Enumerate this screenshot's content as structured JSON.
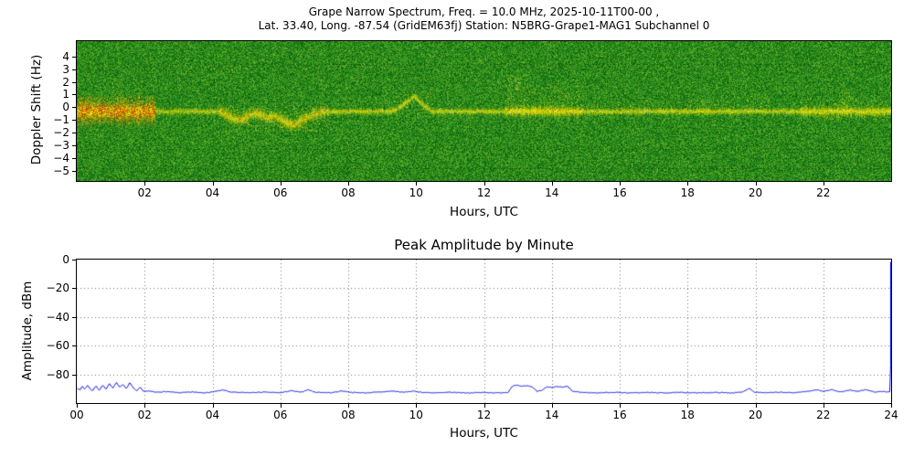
{
  "chart_data": [
    {
      "type": "heatmap",
      "title_line1": "Grape Narrow Spectrum, Freq. = 10.0 MHz, 2025-10-11T00-00 ,",
      "title_line2": "Lat.  33.40, Long. -87.54 (GridEM63fj) Station: N5BRG-Grape1-MAG1 Subchannel 0",
      "xlabel": "Hours, UTC",
      "ylabel": "Doppler Shift (Hz)",
      "xlim": [
        0,
        24
      ],
      "ylim": [
        -5.8,
        5.2
      ],
      "x_ticks": [
        {
          "v": 2,
          "label": "02"
        },
        {
          "v": 4,
          "label": "04"
        },
        {
          "v": 6,
          "label": "06"
        },
        {
          "v": 8,
          "label": "08"
        },
        {
          "v": 10,
          "label": "10"
        },
        {
          "v": 12,
          "label": "12"
        },
        {
          "v": 14,
          "label": "14"
        },
        {
          "v": 16,
          "label": "16"
        },
        {
          "v": 18,
          "label": "18"
        },
        {
          "v": 20,
          "label": "20"
        },
        {
          "v": 22,
          "label": "22"
        }
      ],
      "y_ticks": [
        {
          "v": 4,
          "label": "4"
        },
        {
          "v": 3,
          "label": "3"
        },
        {
          "v": 2,
          "label": "2"
        },
        {
          "v": 1,
          "label": "1"
        },
        {
          "v": 0,
          "label": "0"
        },
        {
          "v": -1,
          "label": "−1"
        },
        {
          "v": -2,
          "label": "−2"
        },
        {
          "v": -3,
          "label": "−3"
        },
        {
          "v": -4,
          "label": "−4"
        },
        {
          "v": -5,
          "label": "−5"
        }
      ],
      "artifact_lines": [
        3.4,
        -3.3,
        -4.8
      ],
      "noise_seed": 42,
      "colors": {
        "trace": "255,232,0",
        "hot": "255,60,0",
        "bright": "255,255,230"
      },
      "baseline_hz": -0.3,
      "trace": [
        [
          0,
          -0.3
        ],
        [
          4.2,
          -0.3
        ],
        [
          4.4,
          -0.55
        ],
        [
          4.6,
          -0.9
        ],
        [
          4.8,
          -1.0
        ],
        [
          5.0,
          -0.7
        ],
        [
          5.2,
          -0.45
        ],
        [
          5.4,
          -0.55
        ],
        [
          5.6,
          -0.8
        ],
        [
          5.8,
          -0.65
        ],
        [
          6.0,
          -0.9
        ],
        [
          6.2,
          -1.25
        ],
        [
          6.4,
          -1.35
        ],
        [
          6.6,
          -1.0
        ],
        [
          6.8,
          -0.75
        ],
        [
          7.0,
          -0.5
        ],
        [
          7.2,
          -0.35
        ],
        [
          7.4,
          -0.3
        ],
        [
          9.2,
          -0.3
        ],
        [
          9.4,
          -0.15
        ],
        [
          9.6,
          0.2
        ],
        [
          9.8,
          0.6
        ],
        [
          9.95,
          0.9
        ],
        [
          10.1,
          0.5
        ],
        [
          10.25,
          0.1
        ],
        [
          10.4,
          -0.2
        ],
        [
          10.5,
          -0.3
        ],
        [
          24,
          -0.3
        ]
      ],
      "segments": [
        {
          "t0": 0.0,
          "t1": 2.3,
          "spread": 0.45,
          "bright": 1.0,
          "hot": 0.5
        },
        {
          "t0": 2.3,
          "t1": 4.2,
          "spread": 0.12,
          "bright": 0.8,
          "hot": 0.0
        },
        {
          "t0": 4.2,
          "t1": 7.4,
          "spread": 0.22,
          "bright": 0.85,
          "hot": 0.08
        },
        {
          "t0": 7.4,
          "t1": 12.6,
          "spread": 0.12,
          "bright": 0.85,
          "hot": 0.0
        },
        {
          "t0": 12.6,
          "t1": 14.9,
          "spread": 0.2,
          "bright": 1.0,
          "hot": 0.05
        },
        {
          "t0": 14.9,
          "t1": 21.3,
          "spread": 0.12,
          "bright": 0.85,
          "hot": 0.0
        },
        {
          "t0": 21.3,
          "t1": 24.0,
          "spread": 0.18,
          "bright": 0.95,
          "hot": 0.0
        }
      ],
      "speckles": [
        {
          "t0": 0.05,
          "t1": 2.3,
          "hz0": -1.3,
          "hz1": 0.9,
          "density": 2.5,
          "color": "mix"
        },
        {
          "t0": 0.9,
          "t1": 1.35,
          "hz0": 0.2,
          "hz1": 2.4,
          "density": 0.8,
          "color": "dim"
        },
        {
          "t0": 4.3,
          "t1": 7.3,
          "hz0": -1.9,
          "hz1": 0.1,
          "density": 1.2,
          "color": "dim"
        },
        {
          "t0": 9.3,
          "t1": 10.5,
          "hz0": -0.2,
          "hz1": 1.1,
          "density": 0.9,
          "color": "dim"
        },
        {
          "t0": 12.62,
          "t1": 13.05,
          "hz0": -0.4,
          "hz1": 2.6,
          "density": 3.0,
          "color": "bright"
        },
        {
          "t0": 13.05,
          "t1": 14.9,
          "hz0": -0.4,
          "hz1": 1.7,
          "density": 1.4,
          "color": "dim"
        },
        {
          "t0": 15.0,
          "t1": 19.5,
          "hz0": -0.5,
          "hz1": 0.5,
          "density": 0.5,
          "color": "dim"
        },
        {
          "t0": 19.7,
          "t1": 20.4,
          "hz0": -0.4,
          "hz1": 1.0,
          "density": 0.8,
          "color": "dim"
        },
        {
          "t0": 21.3,
          "t1": 23.9,
          "hz0": -1.0,
          "hz1": 0.7,
          "density": 1.0,
          "color": "dim"
        },
        {
          "t0": 22.55,
          "t1": 22.8,
          "hz0": -0.3,
          "hz1": 1.4,
          "density": 1.5,
          "color": "dim"
        }
      ],
      "streaks": [
        [
          4.8,
          -1.0,
          0.5,
          -0.6
        ],
        [
          5.5,
          -0.7,
          0.6,
          -0.9
        ],
        [
          6.0,
          -0.9,
          0.7,
          -0.9
        ],
        [
          6.45,
          -1.3,
          0.5,
          -0.6
        ],
        [
          0.3,
          -0.5,
          0.4,
          -0.6
        ],
        [
          1.5,
          -0.4,
          0.5,
          -0.7
        ]
      ]
    },
    {
      "type": "line",
      "title": "Peak Amplitude by Minute",
      "xlabel": "Hours, UTC",
      "ylabel": "Amplitude, dBm",
      "xlim": [
        0,
        24
      ],
      "ylim": [
        -100,
        0
      ],
      "color": "#0000dd",
      "jitter": 0.5,
      "x_ticks": [
        {
          "v": 0,
          "label": "00"
        },
        {
          "v": 2,
          "label": "02"
        },
        {
          "v": 4,
          "label": "04"
        },
        {
          "v": 6,
          "label": "06"
        },
        {
          "v": 8,
          "label": "08"
        },
        {
          "v": 10,
          "label": "10"
        },
        {
          "v": 12,
          "label": "12"
        },
        {
          "v": 14,
          "label": "14"
        },
        {
          "v": 16,
          "label": "16"
        },
        {
          "v": 18,
          "label": "18"
        },
        {
          "v": 20,
          "label": "20"
        },
        {
          "v": 22,
          "label": "22"
        },
        {
          "v": 24,
          "label": "24"
        }
      ],
      "y_ticks": [
        {
          "v": 0,
          "label": "0"
        },
        {
          "v": -20,
          "label": "−20"
        },
        {
          "v": -40,
          "label": "−40"
        },
        {
          "v": -60,
          "label": "−60"
        },
        {
          "v": -80,
          "label": "−80"
        }
      ],
      "points": [
        [
          0.0,
          -89.5
        ],
        [
          0.08,
          -91
        ],
        [
          0.15,
          -88
        ],
        [
          0.22,
          -90.5
        ],
        [
          0.3,
          -87.5
        ],
        [
          0.38,
          -90
        ],
        [
          0.45,
          -91.5
        ],
        [
          0.55,
          -88
        ],
        [
          0.65,
          -91
        ],
        [
          0.75,
          -87.5
        ],
        [
          0.85,
          -90.5
        ],
        [
          0.95,
          -86.5
        ],
        [
          1.05,
          -89.5
        ],
        [
          1.15,
          -85.5
        ],
        [
          1.25,
          -89
        ],
        [
          1.35,
          -87
        ],
        [
          1.45,
          -90
        ],
        [
          1.55,
          -85.5
        ],
        [
          1.65,
          -89.5
        ],
        [
          1.75,
          -91.5
        ],
        [
          1.85,
          -89
        ],
        [
          1.95,
          -92
        ],
        [
          2.1,
          -91.5
        ],
        [
          2.3,
          -92.5
        ],
        [
          2.6,
          -92
        ],
        [
          3.0,
          -92.8
        ],
        [
          3.4,
          -92.3
        ],
        [
          3.8,
          -92.8
        ],
        [
          4.1,
          -91.8
        ],
        [
          4.3,
          -90.8
        ],
        [
          4.5,
          -92.3
        ],
        [
          5.0,
          -92.8
        ],
        [
          5.5,
          -92.4
        ],
        [
          6.0,
          -92.8
        ],
        [
          6.3,
          -91.4
        ],
        [
          6.6,
          -92.5
        ],
        [
          6.8,
          -90.6
        ],
        [
          7.0,
          -92.4
        ],
        [
          7.5,
          -92.8
        ],
        [
          7.8,
          -91.5
        ],
        [
          8.1,
          -92.6
        ],
        [
          8.5,
          -92.9
        ],
        [
          9.0,
          -92.2
        ],
        [
          9.3,
          -91.6
        ],
        [
          9.6,
          -92.5
        ],
        [
          9.9,
          -91.7
        ],
        [
          10.2,
          -92.6
        ],
        [
          10.6,
          -92.9
        ],
        [
          11.0,
          -92.5
        ],
        [
          11.5,
          -92.9
        ],
        [
          12.0,
          -92.6
        ],
        [
          12.4,
          -92.9
        ],
        [
          12.7,
          -92.5
        ],
        [
          12.82,
          -88.2
        ],
        [
          12.95,
          -87.6
        ],
        [
          13.1,
          -88.4
        ],
        [
          13.25,
          -87.9
        ],
        [
          13.4,
          -88.6
        ],
        [
          13.55,
          -91.8
        ],
        [
          13.7,
          -90.9
        ],
        [
          13.85,
          -88.8
        ],
        [
          14.0,
          -89.3
        ],
        [
          14.15,
          -88.4
        ],
        [
          14.3,
          -89.0
        ],
        [
          14.45,
          -88.3
        ],
        [
          14.6,
          -91.9
        ],
        [
          14.9,
          -92.6
        ],
        [
          15.3,
          -92.9
        ],
        [
          15.8,
          -92.5
        ],
        [
          16.3,
          -92.9
        ],
        [
          16.8,
          -92.6
        ],
        [
          17.3,
          -92.9
        ],
        [
          17.8,
          -92.6
        ],
        [
          18.3,
          -92.9
        ],
        [
          18.8,
          -92.6
        ],
        [
          19.3,
          -92.9
        ],
        [
          19.6,
          -92.4
        ],
        [
          19.8,
          -89.6
        ],
        [
          19.95,
          -92.3
        ],
        [
          20.3,
          -92.8
        ],
        [
          20.7,
          -92.5
        ],
        [
          21.1,
          -92.8
        ],
        [
          21.5,
          -91.9
        ],
        [
          21.8,
          -90.7
        ],
        [
          22.0,
          -91.9
        ],
        [
          22.25,
          -90.6
        ],
        [
          22.5,
          -92.3
        ],
        [
          22.75,
          -91.0
        ],
        [
          23.0,
          -91.9
        ],
        [
          23.25,
          -90.7
        ],
        [
          23.5,
          -92.3
        ],
        [
          23.75,
          -92.0
        ],
        [
          23.95,
          -92.3
        ],
        [
          23.99,
          -60
        ],
        [
          24.0,
          -1.5
        ]
      ]
    }
  ]
}
